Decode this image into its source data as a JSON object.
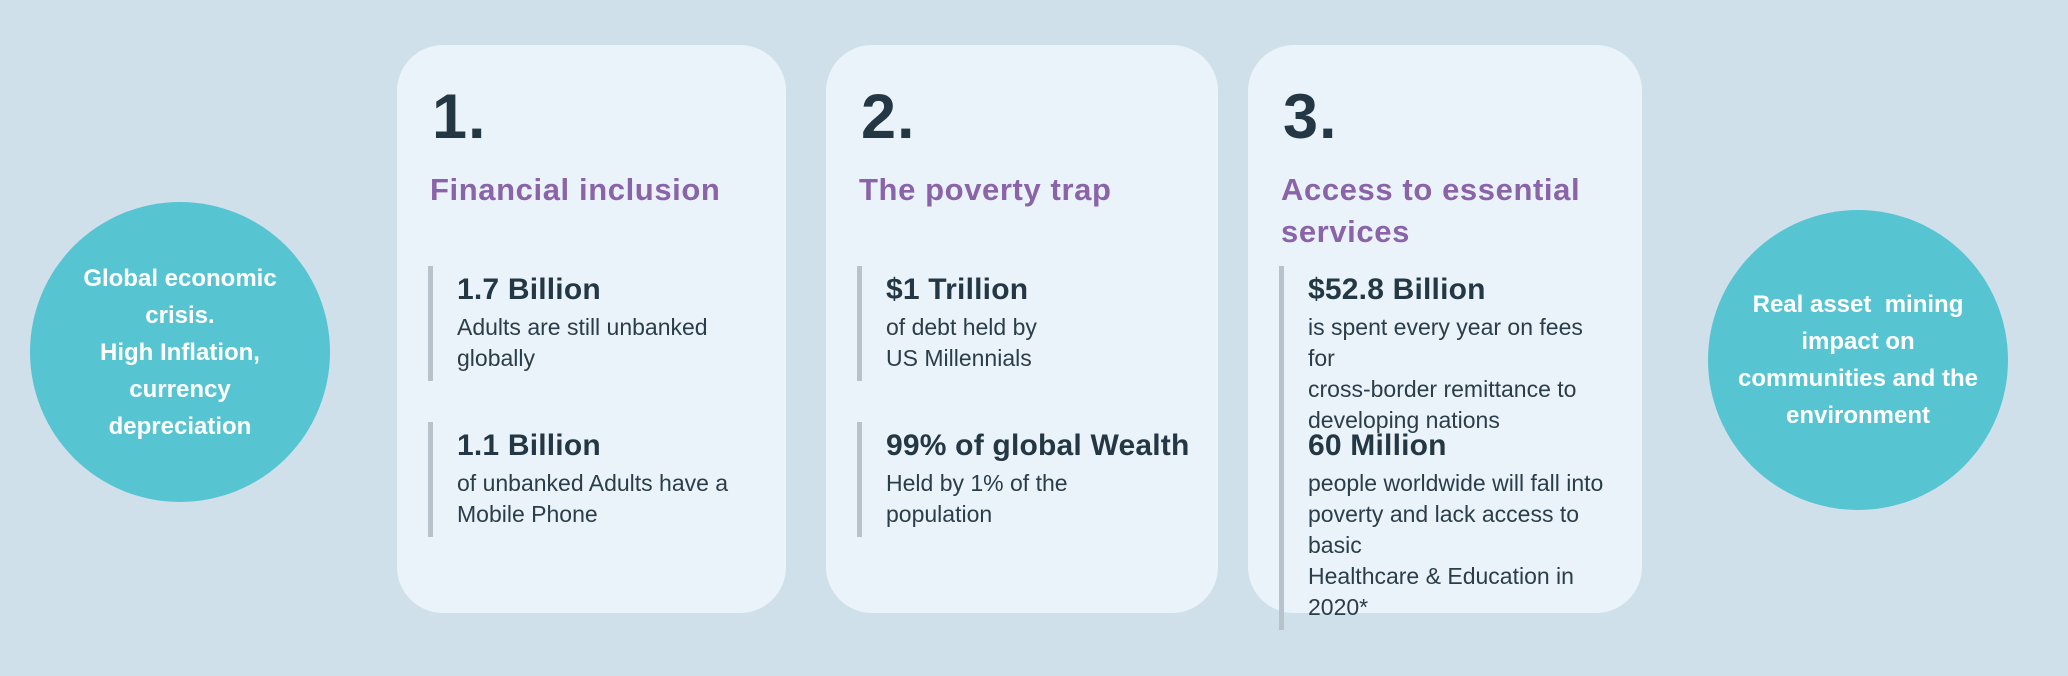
{
  "colors": {
    "page_bg": "#cfe0eb",
    "card_bg": "#e9f3f9",
    "bubble_teal": "#57c4d2",
    "heading_purple": "#8a63a9",
    "number_navy": "#243744",
    "body_text": "#2b3d49",
    "stat_bar_gray": "#b7c2ca"
  },
  "left_bubble": {
    "text": "Global economic\ncrisis.\nHigh Inflation,\ncurrency\ndepreciation"
  },
  "right_bubble": {
    "text": "Real asset  mining\nimpact on\ncommunities and the\nenvironment"
  },
  "cards": [
    {
      "number": "1.",
      "title": "Financial inclusion",
      "stats": [
        {
          "value": "1.7 Billion",
          "description": "Adults are still unbanked\nglobally"
        },
        {
          "value": "1.1 Billion",
          "description": "of unbanked Adults have a\nMobile Phone"
        }
      ]
    },
    {
      "number": "2.",
      "title": "The poverty trap",
      "stats": [
        {
          "value": "$1 Trillion",
          "description": "of debt held by\nUS Millennials"
        },
        {
          "value": "99% of global Wealth",
          "description": "Held by 1% of the\npopulation"
        }
      ]
    },
    {
      "number": "3.",
      "title": "Access to essential\nservices",
      "stats": [
        {
          "value": "$52.8 Billion",
          "description": "is spent every year on fees for\ncross-border remittance to\ndeveloping nations"
        },
        {
          "value": "60 Million",
          "description": "people worldwide will fall into\npoverty and lack access to basic\nHealthcare & Education in 2020*"
        }
      ]
    }
  ]
}
